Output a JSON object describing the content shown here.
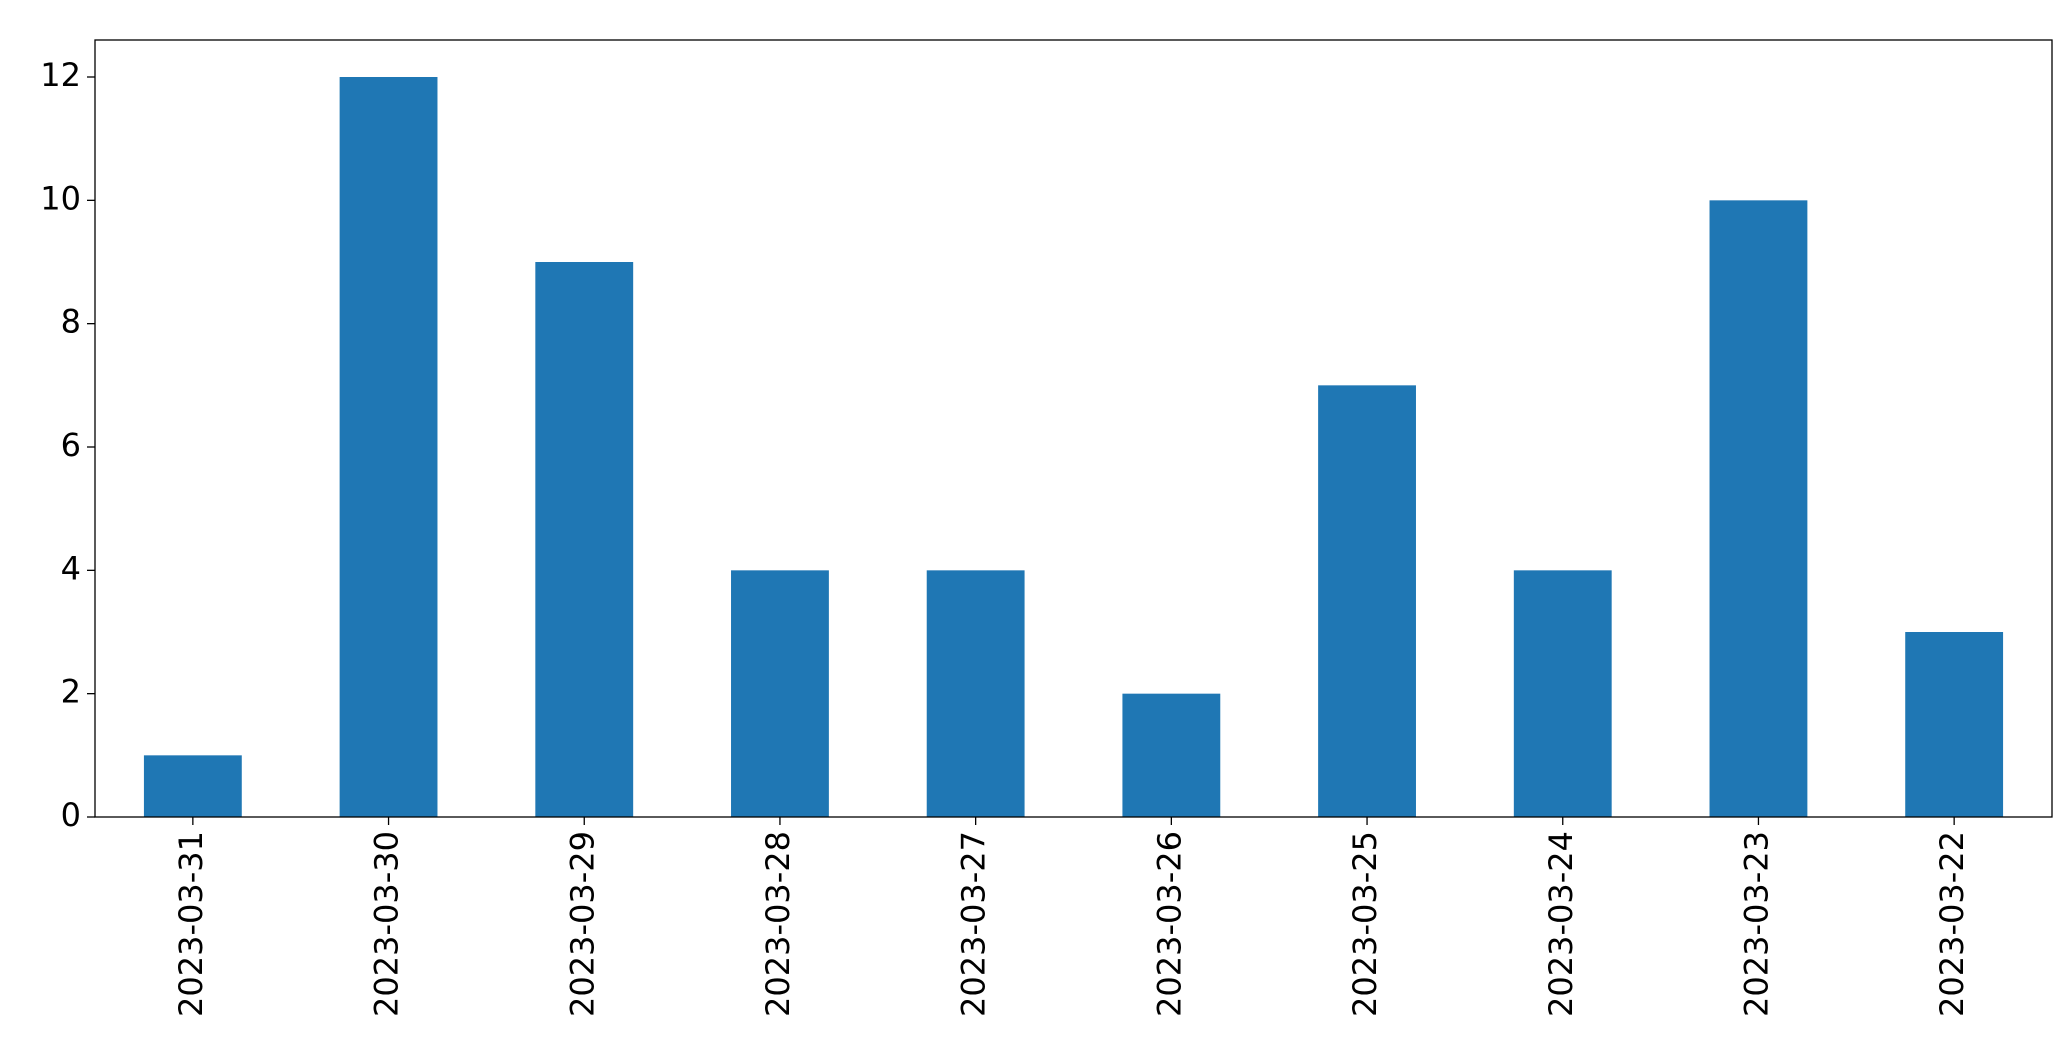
{
  "chart_data": {
    "type": "bar",
    "categories": [
      "2023-03-31",
      "2023-03-30",
      "2023-03-29",
      "2023-03-28",
      "2023-03-27",
      "2023-03-26",
      "2023-03-25",
      "2023-03-24",
      "2023-03-23",
      "2023-03-22"
    ],
    "values": [
      1,
      12,
      9,
      4,
      4,
      2,
      7,
      4,
      10,
      3
    ],
    "color": "#1f77b4",
    "ylim": [
      0,
      12.6
    ],
    "yticks": [
      0,
      2,
      4,
      6,
      8,
      10,
      12
    ],
    "grid": false
  }
}
